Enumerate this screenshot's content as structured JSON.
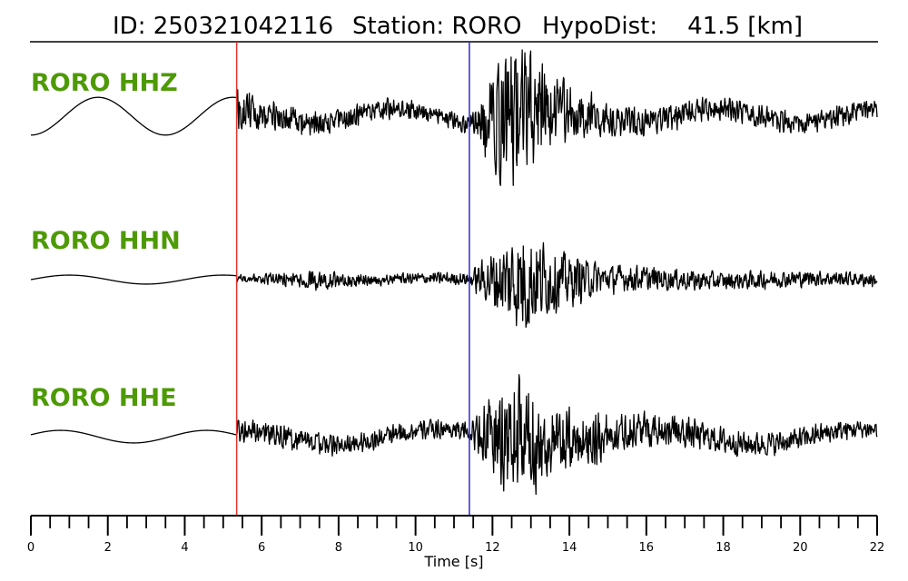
{
  "title": {
    "id_text": "ID: 250321042116",
    "station_text": "Station: RORO",
    "dist_text": "HypoDist:    41.5 [km]"
  },
  "chart_data": {
    "type": "line",
    "xlabel": "Time [s]",
    "xlim": [
      0,
      22
    ],
    "x_ticks": [
      0,
      2,
      4,
      6,
      8,
      10,
      12,
      14,
      16,
      18,
      20,
      22
    ],
    "minor_tick_step": 0.5,
    "p_pick_time": 5.35,
    "s_pick_time": 11.4,
    "colors": {
      "label": "#4e9a06",
      "p_pick": "#e8322d",
      "s_pick": "#2b2bd6",
      "trace": "#000000"
    },
    "series": [
      {
        "name": "RORO HHZ",
        "pre_event": {
          "amplitude": 0.42,
          "period": 3.5,
          "phase": -1.57
        },
        "envelope": [
          [
            5.35,
            0.45
          ],
          [
            6.5,
            0.35
          ],
          [
            8.5,
            0.25
          ],
          [
            10.5,
            0.18
          ],
          [
            11.4,
            0.2
          ],
          [
            12.3,
            1.5
          ],
          [
            12.8,
            1.6
          ],
          [
            13.6,
            0.7
          ],
          [
            15,
            0.35
          ],
          [
            17,
            0.28
          ],
          [
            20,
            0.22
          ],
          [
            22,
            0.22
          ]
        ],
        "drift": {
          "amplitude": 0.28,
          "period": 4.2
        }
      },
      {
        "name": "RORO HHN",
        "pre_event": {
          "amplitude": 0.1,
          "period": 4.0,
          "phase": 0.0
        },
        "envelope": [
          [
            5.35,
            0.1
          ],
          [
            6.5,
            0.14
          ],
          [
            7.5,
            0.2
          ],
          [
            9,
            0.12
          ],
          [
            11.4,
            0.14
          ],
          [
            12.2,
            0.8
          ],
          [
            12.8,
            1.3
          ],
          [
            13.5,
            0.7
          ],
          [
            15,
            0.3
          ],
          [
            18,
            0.2
          ],
          [
            22,
            0.15
          ]
        ],
        "drift": {
          "amplitude": 0.05,
          "period": 5.0
        }
      },
      {
        "name": "RORO HHE",
        "pre_event": {
          "amplitude": 0.14,
          "period": 3.8,
          "phase": 0.3
        },
        "envelope": [
          [
            5.35,
            0.25
          ],
          [
            7,
            0.25
          ],
          [
            9,
            0.22
          ],
          [
            11.4,
            0.2
          ],
          [
            12.3,
            1.2
          ],
          [
            12.8,
            1.4
          ],
          [
            13.5,
            0.8
          ],
          [
            15.5,
            0.4
          ],
          [
            18,
            0.28
          ],
          [
            22,
            0.2
          ]
        ],
        "drift": {
          "amplitude": 0.28,
          "period": 5.5
        }
      }
    ]
  }
}
